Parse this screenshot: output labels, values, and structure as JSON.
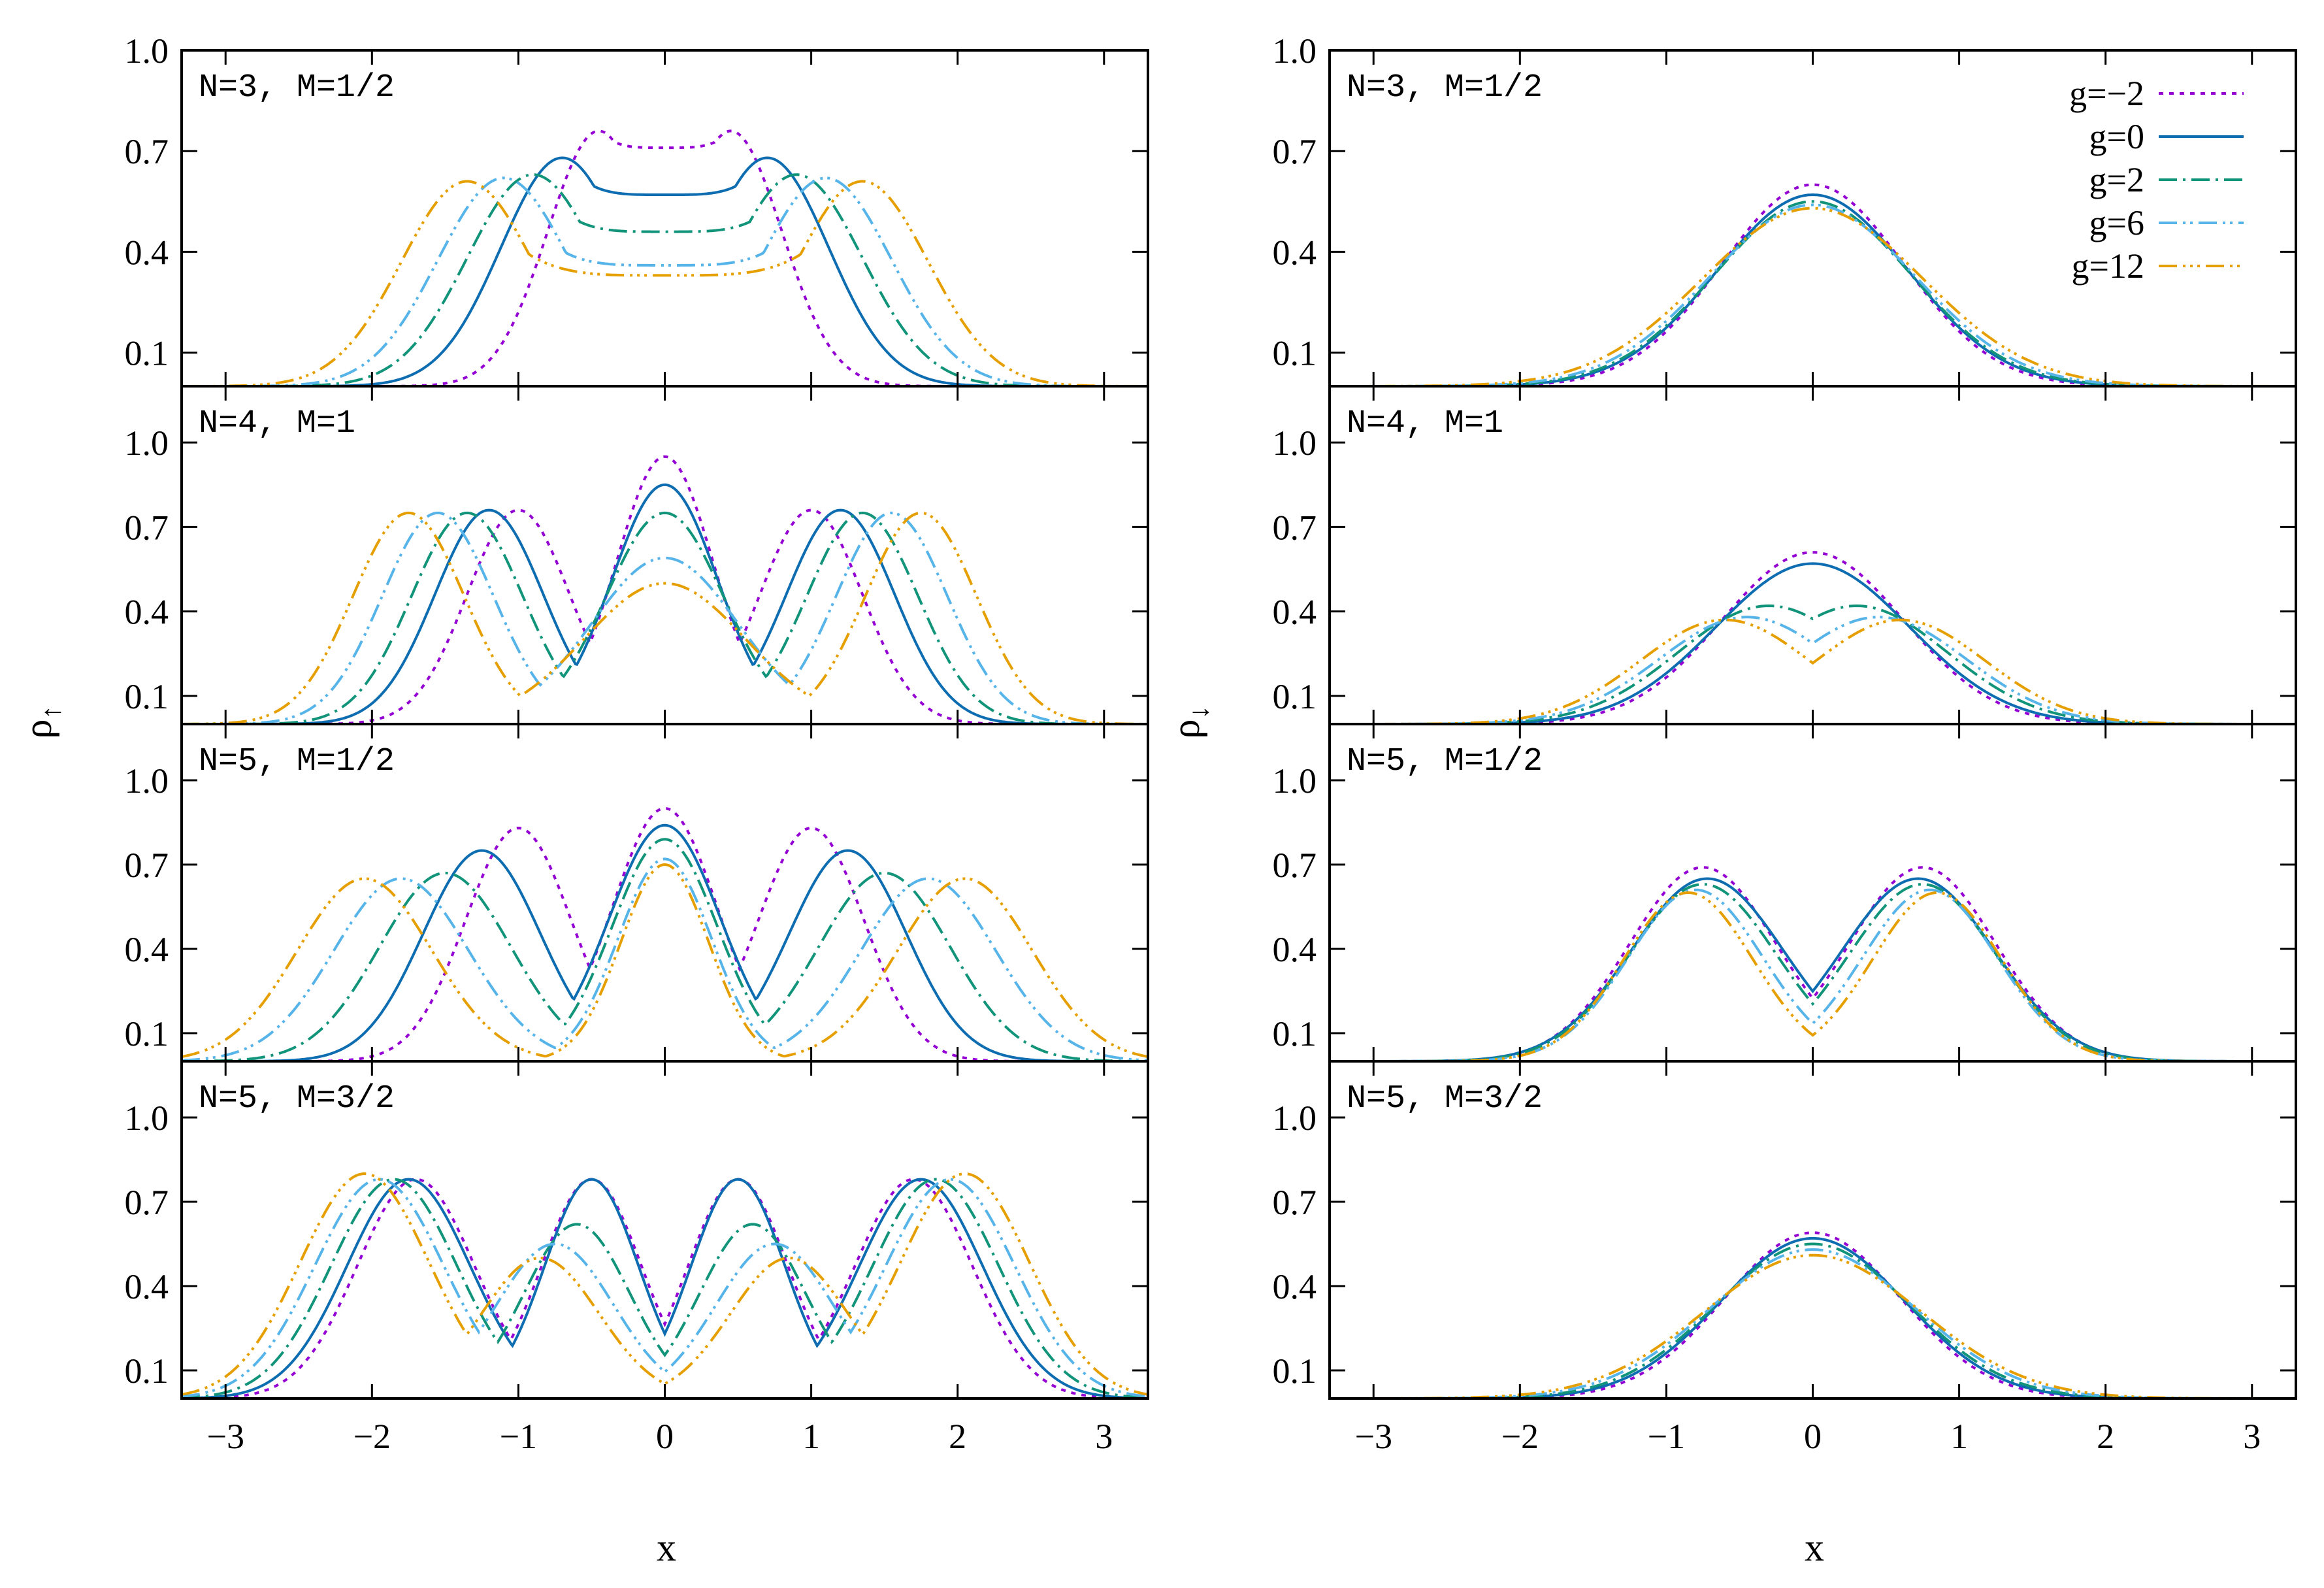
{
  "figure": {
    "styles": [
      {
        "g": "-2",
        "color": "#9400d3",
        "dash": "7,9"
      },
      {
        "g": "0",
        "color": "#0d6db0",
        "dash": ""
      },
      {
        "g": "2",
        "color": "#119479",
        "dash": "28,9,4,9"
      },
      {
        "g": "6",
        "color": "#56b4e9",
        "dash": "28,9,4,7,4,9"
      },
      {
        "g": "12",
        "color": "#e69f00",
        "dash": "28,9,4,7,4,7,4,9"
      }
    ],
    "axes": {
      "xlabel": "x",
      "left_ylabel_base": "ρ",
      "left_ylabel_sub": "↑",
      "right_ylabel_base": "ρ",
      "right_ylabel_sub": "↓",
      "xlim": [
        -3.3,
        3.3
      ],
      "xticks": [
        "−3",
        "−2",
        "−1",
        "0",
        "1",
        "2",
        "3"
      ],
      "xtick_values": [
        -3,
        -2,
        -1,
        0,
        1,
        2,
        3
      ],
      "top_row_ylim": [
        0.0,
        1.0
      ],
      "top_row_yticks": [
        "1.0",
        "0.7",
        "0.4",
        "0.1"
      ],
      "top_row_ytick_values": [
        1.0,
        0.7,
        0.4,
        0.1
      ],
      "other_rows_ylim": [
        0.0,
        1.2
      ],
      "other_rows_yticks": [
        "1.0",
        "0.7",
        "0.4",
        "0.1"
      ],
      "other_rows_ytick_values": [
        1.0,
        0.7,
        0.4,
        0.1
      ]
    },
    "legend": {
      "entries": [
        "g=−2",
        "g=0",
        "g=2",
        "g=6",
        "g=12"
      ]
    }
  },
  "chart_data": [
    {
      "type": "line",
      "title": "N=3, M=1/2",
      "ylabel": "ρ↑",
      "series": [
        {
          "name": "g=−2",
          "peaks": [
            [
              -0.45,
              0.76,
              0.35
            ],
            [
              0.45,
              0.76,
              0.35
            ]
          ],
          "floor": 0.71
        },
        {
          "name": "g=0",
          "peaks": [
            [
              -0.7,
              0.68,
              0.42
            ],
            [
              0.7,
              0.68,
              0.42
            ]
          ],
          "floor": 0.57
        },
        {
          "name": "g=2",
          "peaks": [
            [
              -0.9,
              0.63,
              0.45
            ],
            [
              0.9,
              0.63,
              0.45
            ]
          ],
          "floor": 0.46
        },
        {
          "name": "g=6",
          "peaks": [
            [
              -1.1,
              0.62,
              0.45
            ],
            [
              1.1,
              0.62,
              0.45
            ]
          ],
          "floor": 0.36
        },
        {
          "name": "g=12",
          "peaks": [
            [
              -1.35,
              0.61,
              0.45
            ],
            [
              1.35,
              0.61,
              0.45
            ]
          ],
          "floor": 0.33
        }
      ]
    },
    {
      "type": "line",
      "title": "N=3, M=1/2",
      "ylabel": "ρ↓",
      "legend": "top-right",
      "series": [
        {
          "name": "g=−2",
          "peaks": [
            [
              0,
              0.6,
              0.62
            ]
          ],
          "floor": 0
        },
        {
          "name": "g=0",
          "peaks": [
            [
              0,
              0.57,
              0.65
            ]
          ],
          "floor": 0
        },
        {
          "name": "g=2",
          "peaks": [
            [
              0,
              0.55,
              0.67
            ]
          ],
          "floor": 0
        },
        {
          "name": "g=6",
          "peaks": [
            [
              0,
              0.54,
              0.7
            ]
          ],
          "floor": 0
        },
        {
          "name": "g=12",
          "peaks": [
            [
              0,
              0.53,
              0.75
            ]
          ],
          "floor": 0
        }
      ]
    },
    {
      "type": "line",
      "title": "N=4, M=1",
      "ylabel": "ρ↑",
      "series": [
        {
          "name": "g=−2",
          "peaks": [
            [
              -1.0,
              0.76,
              0.35
            ],
            [
              0,
              0.95,
              0.33
            ],
            [
              1.0,
              0.76,
              0.35
            ]
          ],
          "floor": 0
        },
        {
          "name": "g=0",
          "peaks": [
            [
              -1.2,
              0.76,
              0.37
            ],
            [
              0,
              0.85,
              0.36
            ],
            [
              1.2,
              0.76,
              0.37
            ]
          ],
          "floor": 0
        },
        {
          "name": "g=2",
          "peaks": [
            [
              -1.35,
              0.75,
              0.38
            ],
            [
              0,
              0.75,
              0.4
            ],
            [
              1.35,
              0.75,
              0.38
            ]
          ],
          "floor": 0
        },
        {
          "name": "g=6",
          "peaks": [
            [
              -1.55,
              0.75,
              0.38
            ],
            [
              0,
              0.59,
              0.5
            ],
            [
              1.55,
              0.75,
              0.38
            ]
          ],
          "floor": 0
        },
        {
          "name": "g=12",
          "peaks": [
            [
              -1.75,
              0.75,
              0.38
            ],
            [
              0,
              0.5,
              0.55
            ],
            [
              1.75,
              0.75,
              0.38
            ]
          ],
          "floor": 0
        }
      ]
    },
    {
      "type": "line",
      "title": "N=4, M=1",
      "ylabel": "ρ↓",
      "series": [
        {
          "name": "g=−2",
          "peaks": [
            [
              0,
              0.61,
              0.62
            ]
          ],
          "floor": 0
        },
        {
          "name": "g=0",
          "peaks": [
            [
              0,
              0.57,
              0.66
            ]
          ],
          "floor": 0
        },
        {
          "name": "g=2",
          "peaks": [
            [
              -0.3,
              0.42,
              0.62
            ],
            [
              0.3,
              0.42,
              0.62
            ]
          ],
          "floor": 0
        },
        {
          "name": "g=6",
          "peaks": [
            [
              -0.45,
              0.38,
              0.6
            ],
            [
              0.45,
              0.38,
              0.6
            ]
          ],
          "floor": 0
        },
        {
          "name": "g=12",
          "peaks": [
            [
              -0.6,
              0.37,
              0.58
            ],
            [
              0.6,
              0.37,
              0.58
            ]
          ],
          "floor": 0
        }
      ]
    },
    {
      "type": "line",
      "title": "N=5, M=1/2",
      "ylabel": "ρ↑",
      "series": [
        {
          "name": "g=−2",
          "peaks": [
            [
              -1.0,
              0.83,
              0.36
            ],
            [
              0,
              0.9,
              0.36
            ],
            [
              1.0,
              0.83,
              0.36
            ]
          ],
          "floor": 0
        },
        {
          "name": "g=0",
          "peaks": [
            [
              -1.25,
              0.75,
              0.4
            ],
            [
              0,
              0.84,
              0.38
            ],
            [
              1.25,
              0.75,
              0.4
            ]
          ],
          "floor": 0
        },
        {
          "name": "g=2",
          "peaks": [
            [
              -1.5,
              0.67,
              0.45
            ],
            [
              0,
              0.79,
              0.36
            ],
            [
              1.5,
              0.67,
              0.45
            ]
          ],
          "floor": 0
        },
        {
          "name": "g=6",
          "peaks": [
            [
              -1.8,
              0.65,
              0.46
            ],
            [
              0,
              0.72,
              0.32
            ],
            [
              1.8,
              0.65,
              0.46
            ]
          ],
          "floor": 0
        },
        {
          "name": "g=12",
          "peaks": [
            [
              -2.05,
              0.65,
              0.46
            ],
            [
              0,
              0.7,
              0.3
            ],
            [
              2.05,
              0.65,
              0.46
            ]
          ],
          "floor": 0
        }
      ]
    },
    {
      "type": "line",
      "title": "N=5, M=1/2",
      "ylabel": "ρ↓",
      "series": [
        {
          "name": "g=−2",
          "peaks": [
            [
              -0.75,
              0.69,
              0.5
            ],
            [
              0.75,
              0.69,
              0.5
            ]
          ],
          "floor": 0
        },
        {
          "name": "g=0",
          "peaks": [
            [
              -0.72,
              0.65,
              0.52
            ],
            [
              0.72,
              0.65,
              0.52
            ]
          ],
          "floor": 0
        },
        {
          "name": "g=2",
          "peaks": [
            [
              -0.75,
              0.63,
              0.5
            ],
            [
              0.75,
              0.63,
              0.5
            ]
          ],
          "floor": 0
        },
        {
          "name": "g=6",
          "peaks": [
            [
              -0.8,
              0.61,
              0.46
            ],
            [
              0.8,
              0.61,
              0.46
            ]
          ],
          "floor": 0
        },
        {
          "name": "g=12",
          "peaks": [
            [
              -0.85,
              0.6,
              0.44
            ],
            [
              0.85,
              0.6,
              0.44
            ]
          ],
          "floor": 0
        }
      ]
    },
    {
      "type": "line",
      "title": "N=5, M=3/2",
      "ylabel": "ρ↑",
      "series": [
        {
          "name": "g=−2",
          "peaks": [
            [
              -1.7,
              0.78,
              0.4
            ],
            [
              -0.5,
              0.78,
              0.34
            ],
            [
              0.5,
              0.78,
              0.34
            ],
            [
              1.7,
              0.78,
              0.4
            ]
          ],
          "floor": 0
        },
        {
          "name": "g=0",
          "peaks": [
            [
              -1.75,
              0.78,
              0.42
            ],
            [
              -0.5,
              0.78,
              0.32
            ],
            [
              0.5,
              0.78,
              0.32
            ],
            [
              1.75,
              0.78,
              0.42
            ]
          ],
          "floor": 0
        },
        {
          "name": "g=2",
          "peaks": [
            [
              -1.85,
              0.78,
              0.43
            ],
            [
              -0.6,
              0.62,
              0.36
            ],
            [
              0.6,
              0.62,
              0.36
            ],
            [
              1.85,
              0.78,
              0.43
            ]
          ],
          "floor": 0
        },
        {
          "name": "g=6",
          "peaks": [
            [
              -1.95,
              0.78,
              0.44
            ],
            [
              -0.75,
              0.55,
              0.4
            ],
            [
              0.75,
              0.55,
              0.4
            ],
            [
              1.95,
              0.78,
              0.44
            ]
          ],
          "floor": 0
        },
        {
          "name": "g=12",
          "peaks": [
            [
              -2.05,
              0.8,
              0.44
            ],
            [
              -0.85,
              0.5,
              0.4
            ],
            [
              0.85,
              0.5,
              0.4
            ],
            [
              2.05,
              0.8,
              0.44
            ]
          ],
          "floor": 0
        }
      ]
    },
    {
      "type": "line",
      "title": "N=5, M=3/2",
      "ylabel": "ρ↓",
      "series": [
        {
          "name": "g=−2",
          "peaks": [
            [
              0,
              0.59,
              0.6
            ]
          ],
          "floor": 0
        },
        {
          "name": "g=0",
          "peaks": [
            [
              0,
              0.57,
              0.63
            ]
          ],
          "floor": 0
        },
        {
          "name": "g=2",
          "peaks": [
            [
              0,
              0.55,
              0.66
            ]
          ],
          "floor": 0
        },
        {
          "name": "g=6",
          "peaks": [
            [
              0,
              0.53,
              0.7
            ]
          ],
          "floor": 0
        },
        {
          "name": "g=12",
          "peaks": [
            [
              0,
              0.51,
              0.74
            ]
          ],
          "floor": 0
        }
      ]
    }
  ]
}
